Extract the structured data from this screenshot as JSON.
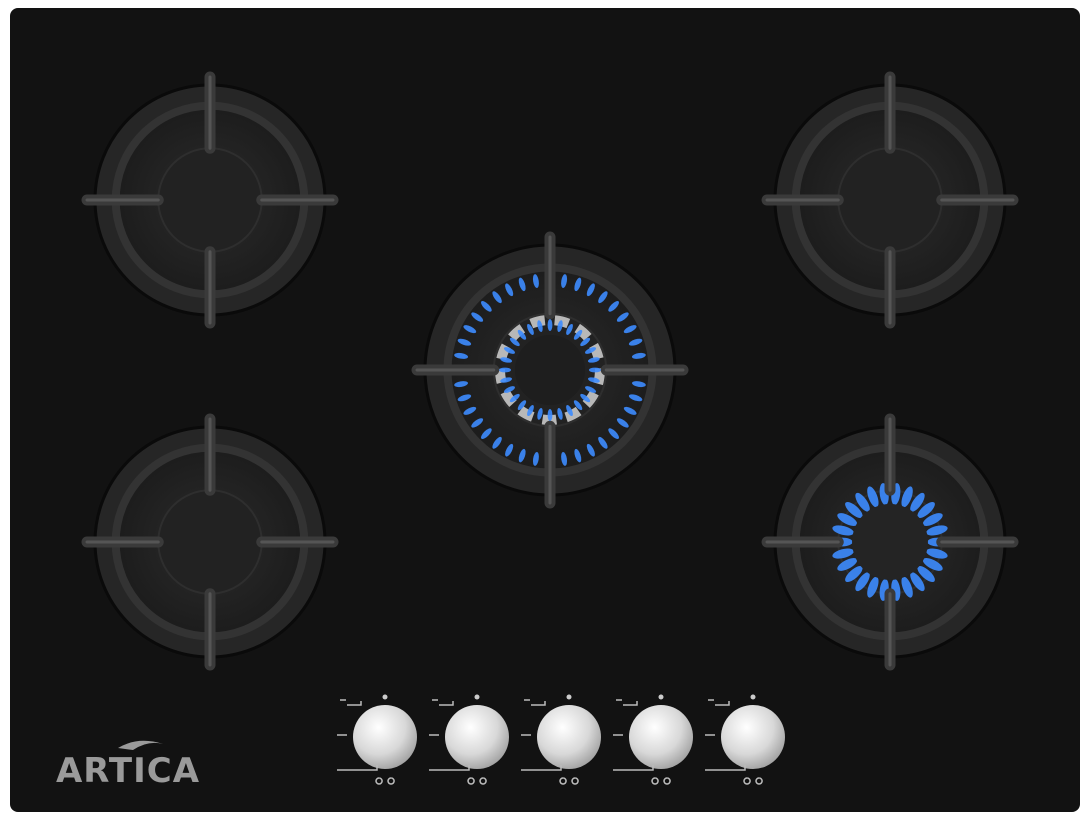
{
  "brand": "ARTICA"
}
